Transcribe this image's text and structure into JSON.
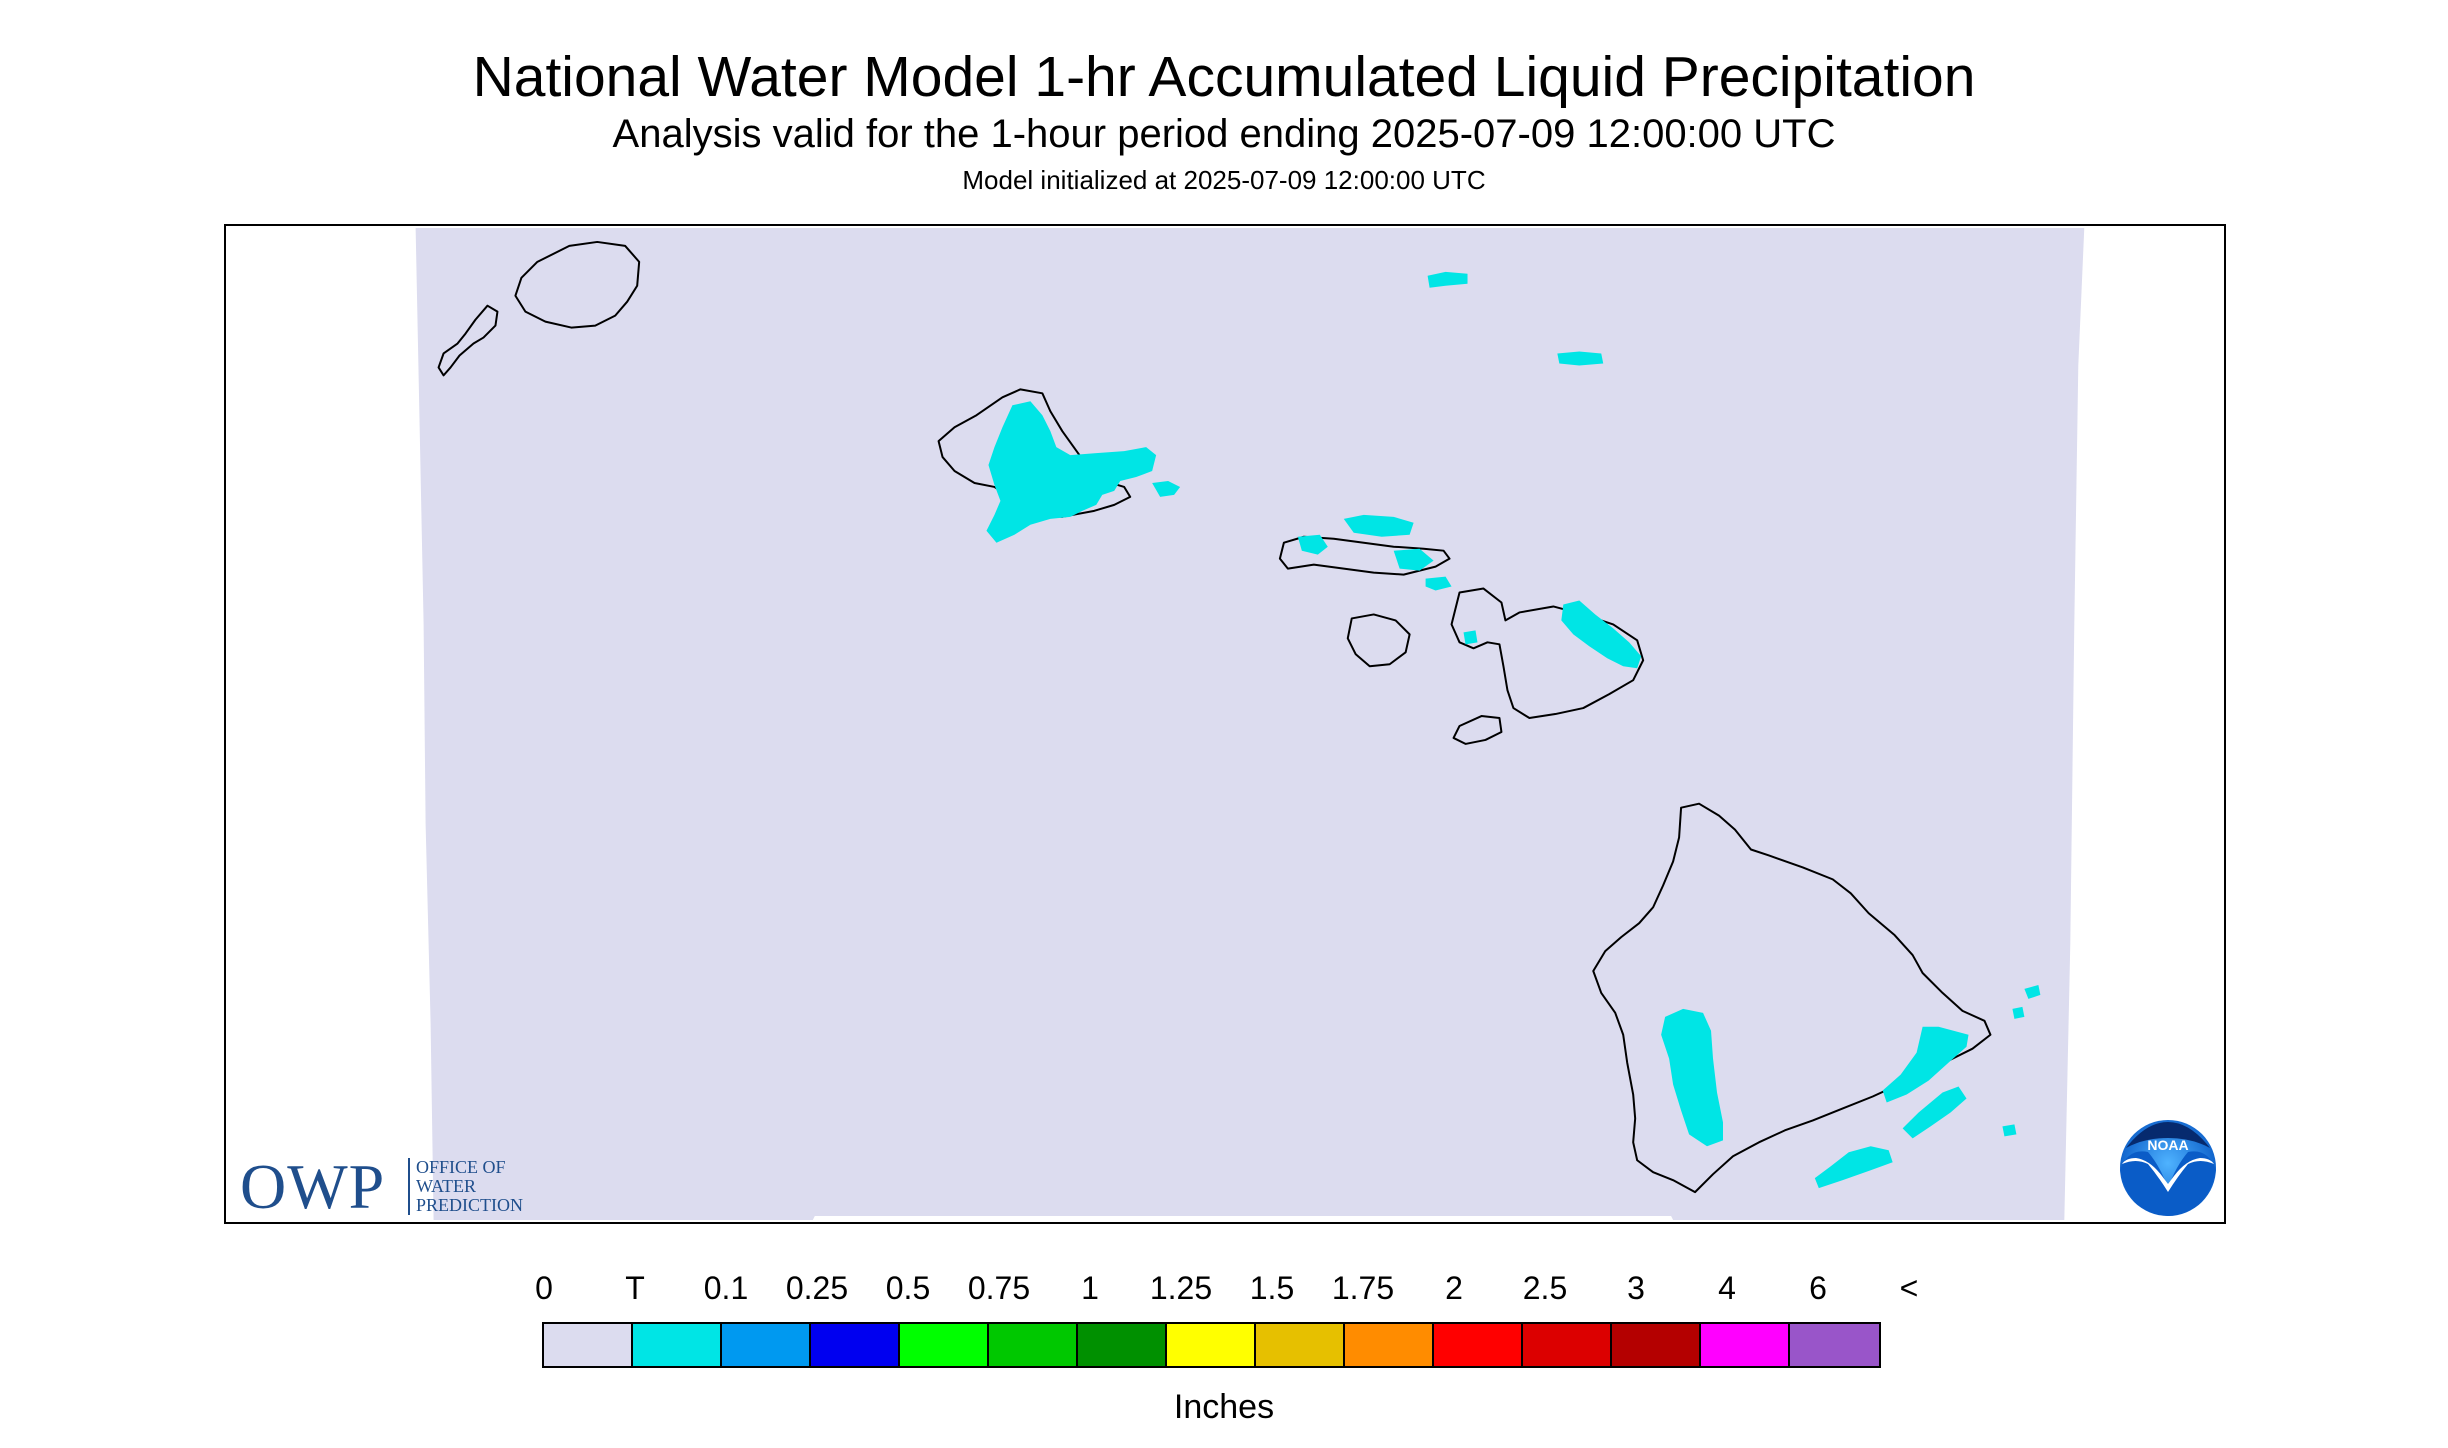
{
  "header": {
    "title": "National Water Model 1-hr Accumulated Liquid Precipitation",
    "subtitle": "Analysis valid for the 1-hour period ending 2025-07-09 12:00:00 UTC",
    "init_line": "Model initialized at 2025-07-09 12:00:00 UTC"
  },
  "logos": {
    "owp_mark": "OWP",
    "owp_line1": "OFFICE OF",
    "owp_line2": "WATER",
    "owp_line3": "PREDICTION",
    "noaa_text": "NOAA"
  },
  "map": {
    "region": "Hawaiian Islands",
    "domain_color": "#dcdcef",
    "coast_color": "#000000",
    "precip_color": "#00e5e5",
    "islands": [
      "Niihau",
      "Kauai",
      "Oahu",
      "Molokai",
      "Lanai",
      "Maui",
      "Kahoolawe",
      "Hawaii"
    ]
  },
  "legend": {
    "labels": [
      "0",
      "T",
      "0.1",
      "0.25",
      "0.5",
      "0.75",
      "1",
      "1.25",
      "1.5",
      "1.75",
      "2",
      "2.5",
      "3",
      "4",
      "6",
      "<"
    ],
    "colors": [
      "#dcdcef",
      "#00e5e5",
      "#0099f0",
      "#0000f0",
      "#00ff00",
      "#00c800",
      "#009000",
      "#ffff00",
      "#e6c000",
      "#ff8c00",
      "#ff0000",
      "#dc0000",
      "#b40000",
      "#ff00ff",
      "#9955c9"
    ],
    "unit": "Inches"
  }
}
